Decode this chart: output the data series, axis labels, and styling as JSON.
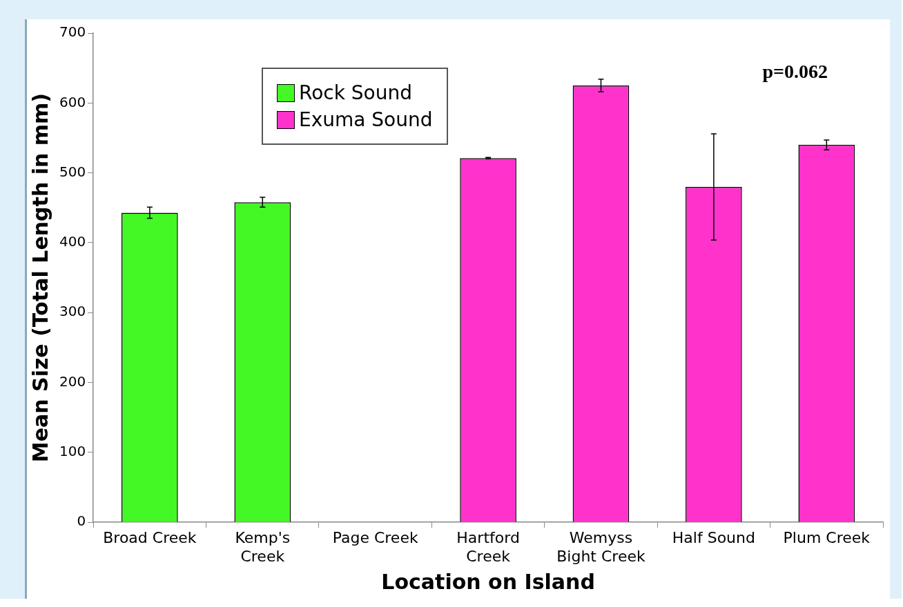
{
  "chart_data": {
    "type": "bar",
    "xlabel": "Location on Island",
    "ylabel": "Mean Size (Total Length in mm)",
    "categories": [
      "Broad Creek",
      "Kemp's Creek",
      "Page Creek",
      "Hartford Creek",
      "Wemyss Bight Creek",
      "Half Sound",
      "Plum Creek"
    ],
    "series": [
      {
        "name": "Rock Sound",
        "color": "#44f825",
        "values": [
          443,
          458,
          null,
          null,
          null,
          null,
          null
        ],
        "errors": [
          8,
          7,
          null,
          null,
          null,
          null,
          null
        ]
      },
      {
        "name": "Exuma Sound",
        "color": "#ff33cc",
        "values": [
          null,
          null,
          null,
          521,
          625,
          480,
          540
        ],
        "errors": [
          null,
          null,
          null,
          1,
          9,
          76,
          7
        ]
      }
    ],
    "ylim": [
      0,
      700
    ],
    "yticks": [
      0,
      100,
      200,
      300,
      400,
      500,
      600,
      700
    ],
    "grid": false,
    "legend": "top left",
    "annotations": [
      "p=0.062"
    ]
  }
}
